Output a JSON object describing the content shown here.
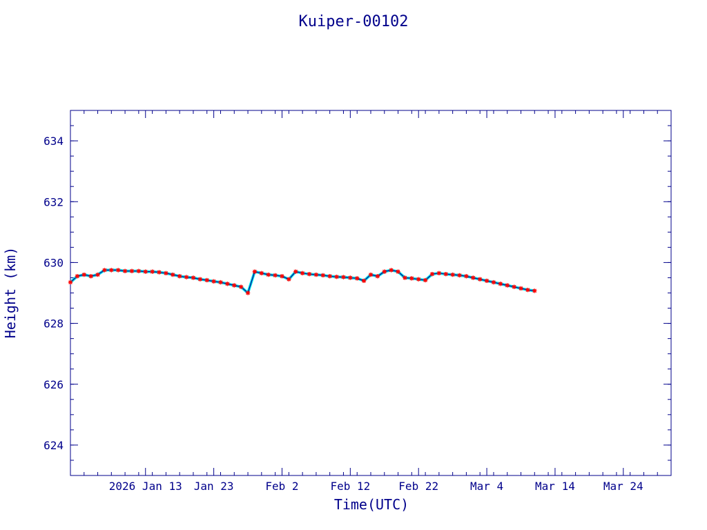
{
  "colors": {
    "axis": "#00008b",
    "line": "#00008b",
    "marker": "#ff0000",
    "smooth": "#00e5ee",
    "background": "#ffffff"
  },
  "chart_data": {
    "type": "scatter",
    "title": "Kuiper-00102",
    "xlabel": "Time(UTC)",
    "ylabel": "Height (km)",
    "xlim": [
      "2026-01-02",
      "2026-03-31"
    ],
    "ylim": [
      623,
      635
    ],
    "grid": false,
    "x_ticks": [
      {
        "date": "2026-01-13",
        "label": "2026 Jan 13"
      },
      {
        "date": "2026-01-23",
        "label": "Jan 23"
      },
      {
        "date": "2026-02-02",
        "label": "Feb  2"
      },
      {
        "date": "2026-02-12",
        "label": "Feb 12"
      },
      {
        "date": "2026-02-22",
        "label": "Feb 22"
      },
      {
        "date": "2026-03-04",
        "label": "Mar  4"
      },
      {
        "date": "2026-03-14",
        "label": "Mar 14"
      },
      {
        "date": "2026-03-24",
        "label": "Mar 24"
      }
    ],
    "y_ticks": [
      624,
      626,
      628,
      630,
      632,
      634
    ],
    "series": [
      {
        "marker": "asterisk",
        "x": [
          "2026-01-02",
          "2026-01-03",
          "2026-01-04",
          "2026-01-05",
          "2026-01-06",
          "2026-01-07",
          "2026-01-08",
          "2026-01-09",
          "2026-01-10",
          "2026-01-11",
          "2026-01-12",
          "2026-01-13",
          "2026-01-14",
          "2026-01-15",
          "2026-01-16",
          "2026-01-17",
          "2026-01-18",
          "2026-01-19",
          "2026-01-20",
          "2026-01-21",
          "2026-01-22",
          "2026-01-23",
          "2026-01-24",
          "2026-01-25",
          "2026-01-26",
          "2026-01-27",
          "2026-01-28",
          "2026-01-29",
          "2026-01-30",
          "2026-01-31",
          "2026-02-01",
          "2026-02-02",
          "2026-02-03",
          "2026-02-04",
          "2026-02-05",
          "2026-02-06",
          "2026-02-07",
          "2026-02-08",
          "2026-02-09",
          "2026-02-10",
          "2026-02-11",
          "2026-02-12",
          "2026-02-13",
          "2026-02-14",
          "2026-02-15",
          "2026-02-16",
          "2026-02-17",
          "2026-02-18",
          "2026-02-19",
          "2026-02-20",
          "2026-02-21",
          "2026-02-22",
          "2026-02-23",
          "2026-02-24",
          "2026-02-25",
          "2026-02-26",
          "2026-02-27",
          "2026-02-28",
          "2026-03-01",
          "2026-03-02",
          "2026-03-03",
          "2026-03-04",
          "2026-03-05",
          "2026-03-06",
          "2026-03-07",
          "2026-03-08",
          "2026-03-09",
          "2026-03-10",
          "2026-03-11"
        ],
        "y": [
          629.35,
          629.55,
          629.6,
          629.55,
          629.6,
          629.75,
          629.75,
          629.75,
          629.72,
          629.72,
          629.72,
          629.7,
          629.7,
          629.68,
          629.65,
          629.6,
          629.55,
          629.52,
          629.5,
          629.45,
          629.42,
          629.38,
          629.35,
          629.3,
          629.25,
          629.2,
          629.0,
          629.7,
          629.65,
          629.6,
          629.58,
          629.55,
          629.45,
          629.7,
          629.65,
          629.62,
          629.6,
          629.58,
          629.55,
          629.53,
          629.52,
          629.5,
          629.48,
          629.4,
          629.6,
          629.55,
          629.7,
          629.75,
          629.7,
          629.5,
          629.48,
          629.45,
          629.42,
          629.62,
          629.65,
          629.62,
          629.6,
          629.58,
          629.55,
          629.5,
          629.45,
          629.4,
          629.35,
          629.3,
          629.25,
          629.2,
          629.15,
          629.1,
          629.07
        ]
      }
    ]
  }
}
